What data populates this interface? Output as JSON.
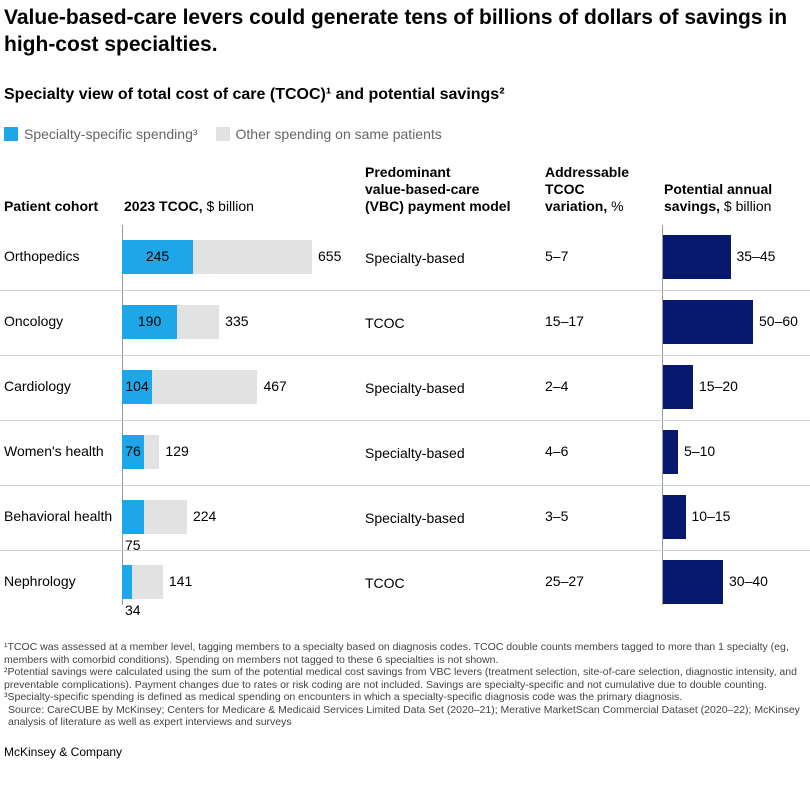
{
  "title": "Value-based-care levers could generate tens of billions of dollars of savings in high-cost specialties.",
  "subtitle": "Specialty view of total cost of care (TCOC)¹ and potential savings²",
  "legend": {
    "specialty": "Specialty-specific spending³",
    "other": "Other spending on same patients"
  },
  "headers": {
    "cohort": "Patient cohort",
    "tcoc_bold": "2023 TCOC,",
    "tcoc_unit": " $ billion",
    "model_line1": "Predominant",
    "model_line2": "value-based-care",
    "model_line3": "(VBC) payment model",
    "addr_line1": "Addressable",
    "addr_line2": "TCOC",
    "addr_line3_bold": "variation,",
    "addr_line3_unit": " %",
    "sav_line1": "Potential annual",
    "sav_line2_bold": "savings,",
    "sav_line2_unit": " $ billion"
  },
  "colors": {
    "specialty": "#1ea7e8",
    "other": "#e2e2e2",
    "savings": "#07186e"
  },
  "chart_data": {
    "type": "bar",
    "title": "Specialty view of total cost of care (TCOC)¹ and potential savings²",
    "categories": [
      "Orthopedics",
      "Oncology",
      "Cardiology",
      "Women's health",
      "Behavioral health",
      "Nephrology"
    ],
    "series": [
      {
        "name": "Specialty-specific spending³",
        "values": [
          245,
          190,
          104,
          76,
          75,
          34
        ]
      },
      {
        "name": "Other spending on same patients",
        "values": [
          410,
          145,
          363,
          53,
          149,
          107
        ]
      }
    ],
    "totals": [
      655,
      335,
      467,
      129,
      224,
      141
    ],
    "totals_label": [
      "655",
      "335",
      "467",
      "129",
      "224",
      "141"
    ],
    "specialty_label": [
      "245",
      "190",
      "104",
      "76",
      "75",
      "34"
    ],
    "payment_model": [
      "Specialty-based",
      "TCOC",
      "Specialty-based",
      "Specialty-based",
      "Specialty-based",
      "TCOC"
    ],
    "addressable_variation": [
      "5–7",
      "15–17",
      "2–4",
      "4–6",
      "3–5",
      "25–27"
    ],
    "savings_range": [
      [
        35,
        45
      ],
      [
        50,
        60
      ],
      [
        15,
        20
      ],
      [
        5,
        10
      ],
      [
        10,
        15
      ],
      [
        30,
        40
      ]
    ],
    "savings_label": [
      "35–45",
      "50–60",
      "15–20",
      "5–10",
      "10–15",
      "30–40"
    ],
    "xlabel": "2023 TCOC, $ billion",
    "ylabel": ""
  },
  "footnotes": [
    "¹TCOC was assessed at a member level, tagging members to a specialty based on diagnosis codes. TCOC double counts members tagged to more than 1 specialty (eg, members with comorbid conditions). Spending on members not tagged to these 6 specialties is not shown.",
    "²Potential savings were calculated using the sum of the potential medical cost savings from VBC levers (treatment selection, site-of-care selection, diagnostic intensity, and preventable complications). Payment changes due to rates or risk coding are not included. Savings are specialty-specific and not cumulative due to double counting.",
    "³Specialty-specific spending is defined as medical spending on encounters in which a specialty-specific diagnosis code was the primary diagnosis.",
    "Source: CareCUBE by McKinsey; Centers for Medicare & Medicaid Services Limited Data Set (2020–21); Merative MarketScan Commercial Dataset (2020–22); McKinsey analysis of literature as well as expert interviews and surveys"
  ],
  "brand": "McKinsey & Company"
}
